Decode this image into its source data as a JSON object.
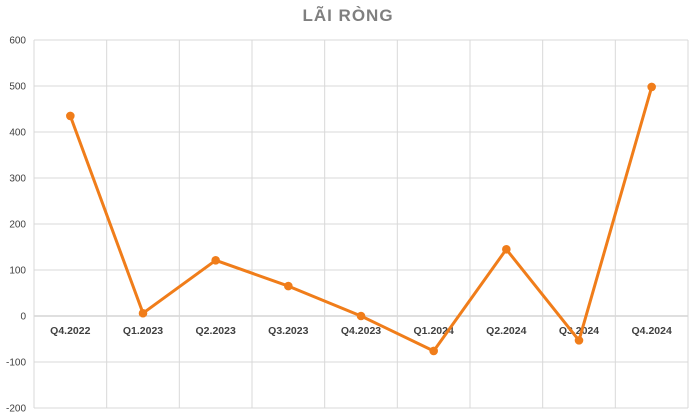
{
  "chart_data": {
    "type": "line",
    "title": "LÃI RÒNG",
    "xlabel": "",
    "ylabel": "",
    "categories": [
      "Q4.2022",
      "Q1.2023",
      "Q2.2023",
      "Q3.2023",
      "Q4.2023",
      "Q1.2024",
      "Q2.2024",
      "Q3.2024",
      "Q4.2024"
    ],
    "series": [
      {
        "values": [
          435,
          6,
          121,
          65,
          0,
          -76,
          145,
          -53,
          498
        ],
        "color": "#f07d1a"
      }
    ],
    "ylim": [
      -200,
      600
    ],
    "yticks": [
      -200,
      -100,
      0,
      100,
      200,
      300,
      400,
      500,
      600
    ],
    "grid": true,
    "legend": "none",
    "colors": {
      "line": "#f07d1a",
      "grid": "#d9d9d9",
      "axis": "#d9d9d9"
    }
  }
}
